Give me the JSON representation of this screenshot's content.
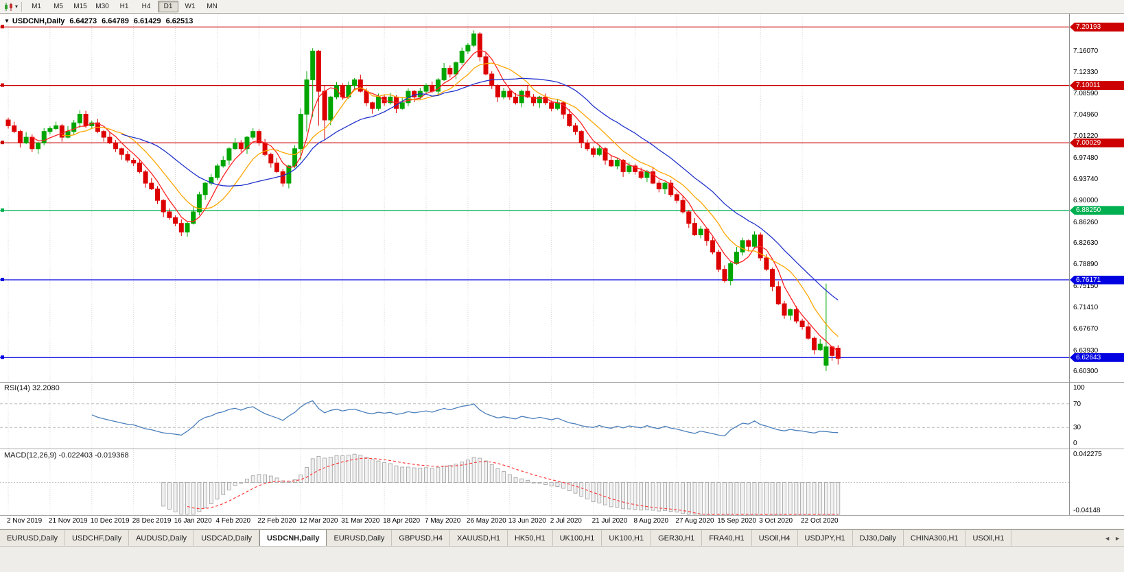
{
  "toolbar": {
    "timeframes": [
      "M1",
      "M5",
      "M15",
      "M30",
      "H1",
      "H4",
      "D1",
      "W1",
      "MN"
    ],
    "active_timeframe": "D1"
  },
  "chart_header": {
    "collapse_glyph": "▼",
    "symbol": "USDCNH,Daily",
    "open": "6.64273",
    "high": "6.64789",
    "low": "6.61429",
    "close": "6.62513"
  },
  "rsi_panel": {
    "name": "RSI(14)",
    "value": "32.2080",
    "axis_labels": [
      "100",
      "70",
      "30",
      "0"
    ]
  },
  "macd_panel": {
    "name": "MACD(12,26,9)",
    "value": "-0.022403 -0.019368",
    "axis_top": "0.042275",
    "axis_bottom": "-0.04148"
  },
  "tabs": {
    "items": [
      "EURUSD,Daily",
      "USDCHF,Daily",
      "AUDUSD,Daily",
      "USDCAD,Daily",
      "USDCNH,Daily",
      "EURUSD,Daily",
      "GBPUSD,H4",
      "XAUUSD,H1",
      "HK50,H1",
      "UK100,H1",
      "UK100,H1",
      "GER30,H1",
      "FRA40,H1",
      "USOil,H4",
      "USDJPY,H1",
      "DJ30,Daily",
      "CHINA300,H1",
      "USOil,H1"
    ],
    "active_index": 4,
    "scroll_left_glyph": "◄",
    "scroll_right_glyph": "►"
  },
  "chart_data": {
    "type": "candlestick",
    "title": "USDCNH,Daily",
    "y_range": [
      6.585,
      7.225
    ],
    "y_tick_labels": [
      "7.16070",
      "7.12330",
      "7.08590",
      "7.04960",
      "7.01220",
      "6.97480",
      "6.93740",
      "6.90000",
      "6.86260",
      "6.82630",
      "6.78890",
      "6.75150",
      "6.71410",
      "6.67670",
      "6.63930",
      "6.60300"
    ],
    "x_tick_labels": [
      "2 Nov 2019",
      "21 Nov 2019",
      "10 Dec 2019",
      "28 Dec 2019",
      "16 Jan 2020",
      "4 Feb 2020",
      "22 Feb 2020",
      "12 Mar 2020",
      "31 Mar 2020",
      "18 Apr 2020",
      "7 May 2020",
      "26 May 2020",
      "13 Jun 2020",
      "2 Jul 2020",
      "21 Jul 2020",
      "8 Aug 2020",
      "27 Aug 2020",
      "15 Sep 2020",
      "3 Oct 2020",
      "22 Oct 2020"
    ],
    "bars_per_x_tick": 7,
    "up_color": "#00A500",
    "down_color": "#DD0000",
    "candles": [
      [
        7.04,
        7.044,
        7.025,
        7.03
      ],
      [
        7.03,
        7.037,
        7.017,
        7.02
      ],
      [
        7.02,
        7.023,
        6.992,
        7.0
      ],
      [
        7.0,
        7.019,
        6.998,
        7.01
      ],
      [
        7.01,
        7.015,
        6.984,
        6.99
      ],
      [
        6.99,
        7.002,
        6.981,
        7.0
      ],
      [
        7.0,
        7.026,
        6.996,
        7.02
      ],
      [
        7.02,
        7.029,
        7.015,
        7.025
      ],
      [
        7.025,
        7.037,
        7.022,
        7.03
      ],
      [
        7.03,
        7.033,
        7.002,
        7.01
      ],
      [
        7.01,
        7.029,
        7.008,
        7.02
      ],
      [
        7.02,
        7.04,
        7.014,
        7.035
      ],
      [
        7.035,
        7.057,
        7.026,
        7.05
      ],
      [
        7.05,
        7.056,
        7.026,
        7.03
      ],
      [
        7.03,
        7.039,
        7.025,
        7.035
      ],
      [
        7.035,
        7.042,
        7.017,
        7.02
      ],
      [
        7.02,
        7.023,
        7.002,
        7.01
      ],
      [
        7.01,
        7.019,
        6.998,
        7.0
      ],
      [
        7.0,
        7.005,
        6.984,
        6.99
      ],
      [
        6.99,
        6.992,
        6.971,
        6.98
      ],
      [
        6.98,
        6.986,
        6.966,
        6.97
      ],
      [
        6.97,
        6.974,
        6.96,
        6.965
      ],
      [
        6.965,
        6.972,
        6.947,
        6.95
      ],
      [
        6.95,
        6.953,
        6.922,
        6.93
      ],
      [
        6.93,
        6.939,
        6.918,
        6.92
      ],
      [
        6.92,
        6.925,
        6.894,
        6.9
      ],
      [
        6.9,
        6.902,
        6.871,
        6.88
      ],
      [
        6.88,
        6.886,
        6.866,
        6.87
      ],
      [
        6.87,
        6.874,
        6.855,
        6.86
      ],
      [
        6.86,
        6.867,
        6.838,
        6.845
      ],
      [
        6.845,
        6.863,
        6.837,
        6.86
      ],
      [
        6.86,
        6.889,
        6.858,
        6.88
      ],
      [
        6.88,
        6.915,
        6.874,
        6.91
      ],
      [
        6.91,
        6.932,
        6.901,
        6.93
      ],
      [
        6.93,
        6.946,
        6.926,
        6.94
      ],
      [
        6.94,
        6.964,
        6.935,
        6.96
      ],
      [
        6.96,
        6.977,
        6.957,
        6.97
      ],
      [
        6.97,
        6.993,
        6.962,
        6.99
      ],
      [
        6.99,
        7.009,
        6.988,
        7.0
      ],
      [
        7.0,
        7.005,
        6.984,
        6.99
      ],
      [
        6.99,
        7.012,
        6.981,
        7.01
      ],
      [
        7.01,
        7.026,
        7.006,
        7.02
      ],
      [
        7.02,
        7.024,
        6.995,
        7.0
      ],
      [
        7.0,
        7.007,
        6.977,
        6.98
      ],
      [
        6.98,
        6.983,
        6.957,
        6.965
      ],
      [
        6.965,
        6.974,
        6.948,
        6.95
      ],
      [
        6.95,
        6.955,
        6.924,
        6.93
      ],
      [
        6.93,
        6.962,
        6.921,
        6.96
      ],
      [
        6.96,
        6.996,
        6.956,
        6.99
      ],
      [
        6.99,
        7.06,
        6.97,
        7.05
      ],
      [
        7.05,
        7.125,
        7.02,
        7.11
      ],
      [
        7.11,
        7.165,
        7.045,
        7.16
      ],
      [
        7.16,
        7.162,
        7.03,
        7.09
      ],
      [
        7.09,
        7.1,
        7.005,
        7.04
      ],
      [
        7.04,
        7.082,
        7.031,
        7.08
      ],
      [
        7.08,
        7.106,
        7.076,
        7.1
      ],
      [
        7.1,
        7.104,
        7.075,
        7.08
      ],
      [
        7.08,
        7.107,
        7.077,
        7.1
      ],
      [
        7.1,
        7.113,
        7.092,
        7.11
      ],
      [
        7.11,
        7.119,
        7.088,
        7.09
      ],
      [
        7.09,
        7.095,
        7.064,
        7.07
      ],
      [
        7.07,
        7.072,
        7.051,
        7.06
      ],
      [
        7.06,
        7.086,
        7.056,
        7.08
      ],
      [
        7.08,
        7.084,
        7.065,
        7.07
      ],
      [
        7.07,
        7.087,
        7.067,
        7.08
      ],
      [
        7.08,
        7.083,
        7.052,
        7.06
      ],
      [
        7.06,
        7.079,
        7.058,
        7.07
      ],
      [
        7.07,
        7.095,
        7.064,
        7.09
      ],
      [
        7.09,
        7.092,
        7.071,
        7.08
      ],
      [
        7.08,
        7.096,
        7.076,
        7.09
      ],
      [
        7.09,
        7.104,
        7.085,
        7.1
      ],
      [
        7.1,
        7.107,
        7.087,
        7.09
      ],
      [
        7.09,
        7.113,
        7.082,
        7.11
      ],
      [
        7.11,
        7.139,
        7.108,
        7.13
      ],
      [
        7.13,
        7.135,
        7.114,
        7.12
      ],
      [
        7.12,
        7.142,
        7.111,
        7.14
      ],
      [
        7.14,
        7.166,
        7.136,
        7.16
      ],
      [
        7.16,
        7.174,
        7.155,
        7.17
      ],
      [
        7.17,
        7.196,
        7.167,
        7.19
      ],
      [
        7.19,
        7.193,
        7.142,
        7.15
      ],
      [
        7.15,
        7.159,
        7.118,
        7.12
      ],
      [
        7.12,
        7.125,
        7.094,
        7.1
      ],
      [
        7.1,
        7.102,
        7.071,
        7.08
      ],
      [
        7.08,
        7.096,
        7.076,
        7.09
      ],
      [
        7.09,
        7.094,
        7.075,
        7.08
      ],
      [
        7.08,
        7.087,
        7.067,
        7.07
      ],
      [
        7.07,
        7.093,
        7.062,
        7.09
      ],
      [
        7.09,
        7.099,
        7.078,
        7.08
      ],
      [
        7.08,
        7.085,
        7.064,
        7.07
      ],
      [
        7.07,
        7.082,
        7.061,
        7.08
      ],
      [
        7.08,
        7.086,
        7.066,
        7.07
      ],
      [
        7.07,
        7.074,
        7.055,
        7.06
      ],
      [
        7.06,
        7.077,
        7.057,
        7.07
      ],
      [
        7.07,
        7.073,
        7.042,
        7.05
      ],
      [
        7.05,
        7.059,
        7.028,
        7.03
      ],
      [
        7.03,
        7.035,
        7.014,
        7.02
      ],
      [
        7.02,
        7.022,
        6.991,
        7.0
      ],
      [
        7.0,
        7.006,
        6.986,
        6.99
      ],
      [
        6.99,
        6.994,
        6.975,
        6.98
      ],
      [
        6.98,
        6.997,
        6.977,
        6.99
      ],
      [
        6.99,
        6.993,
        6.962,
        6.97
      ],
      [
        6.97,
        6.979,
        6.958,
        6.96
      ],
      [
        6.96,
        6.975,
        6.954,
        6.97
      ],
      [
        6.97,
        6.972,
        6.941,
        6.95
      ],
      [
        6.95,
        6.966,
        6.946,
        6.96
      ],
      [
        6.96,
        6.964,
        6.945,
        6.95
      ],
      [
        6.95,
        6.957,
        6.937,
        6.94
      ],
      [
        6.94,
        6.953,
        6.932,
        6.95
      ],
      [
        6.95,
        6.959,
        6.928,
        6.93
      ],
      [
        6.93,
        6.935,
        6.914,
        6.92
      ],
      [
        6.92,
        6.932,
        6.911,
        6.93
      ],
      [
        6.93,
        6.936,
        6.906,
        6.91
      ],
      [
        6.91,
        6.914,
        6.895,
        6.9
      ],
      [
        6.9,
        6.907,
        6.877,
        6.88
      ],
      [
        6.88,
        6.883,
        6.852,
        6.86
      ],
      [
        6.86,
        6.869,
        6.838,
        6.84
      ],
      [
        6.84,
        6.855,
        6.834,
        6.85
      ],
      [
        6.85,
        6.852,
        6.821,
        6.83
      ],
      [
        6.83,
        6.836,
        6.806,
        6.81
      ],
      [
        6.81,
        6.814,
        6.775,
        6.78
      ],
      [
        6.78,
        6.787,
        6.757,
        6.76
      ],
      [
        6.76,
        6.793,
        6.752,
        6.79
      ],
      [
        6.79,
        6.819,
        6.788,
        6.81
      ],
      [
        6.81,
        6.835,
        6.804,
        6.83
      ],
      [
        6.83,
        6.832,
        6.811,
        6.82
      ],
      [
        6.82,
        6.846,
        6.816,
        6.84
      ],
      [
        6.84,
        6.844,
        6.795,
        6.8
      ],
      [
        6.8,
        6.807,
        6.777,
        6.78
      ],
      [
        6.78,
        6.783,
        6.742,
        6.75
      ],
      [
        6.75,
        6.759,
        6.718,
        6.72
      ],
      [
        6.72,
        6.725,
        6.694,
        6.7
      ],
      [
        6.7,
        6.712,
        6.691,
        6.71
      ],
      [
        6.71,
        6.716,
        6.686,
        6.69
      ],
      [
        6.69,
        6.694,
        6.675,
        6.68
      ],
      [
        6.68,
        6.687,
        6.657,
        6.66
      ],
      [
        6.66,
        6.663,
        6.632,
        6.64
      ],
      [
        6.64,
        6.659,
        6.638,
        6.65
      ],
      [
        6.613,
        6.755,
        6.603,
        6.645
      ],
      [
        6.645,
        6.647,
        6.621,
        6.63
      ],
      [
        6.6427,
        6.6479,
        6.6143,
        6.6251
      ]
    ],
    "moving_averages": [
      {
        "name": "fast",
        "period": 5,
        "type": "sma",
        "color": "#FF2222"
      },
      {
        "name": "medium",
        "period": 10,
        "type": "sma",
        "color": "#FFA500"
      },
      {
        "name": "slow",
        "period": 20,
        "type": "sma",
        "color": "#2233CC"
      }
    ],
    "horizontal_levels": [
      {
        "label": "7.20193",
        "price": 7.20193,
        "color": "#CC0000"
      },
      {
        "label": "7.10011",
        "price": 7.10011,
        "color": "#CC0000"
      },
      {
        "label": "7.00029",
        "price": 7.00029,
        "color": "#CC0000"
      },
      {
        "label": "6.88250",
        "price": 6.8825,
        "color": "#00B050"
      },
      {
        "label": "6.76171",
        "price": 6.76171,
        "color": "#0000E0"
      },
      {
        "label": "6.62643",
        "price": 6.62643,
        "color": "#0000E0"
      }
    ],
    "rsi": {
      "period": 14,
      "current": 32.208,
      "levels": [
        70,
        30
      ],
      "color": "#4A7EBB"
    },
    "macd": {
      "fast": 12,
      "slow": 26,
      "signal": 9,
      "current": [
        -0.022403,
        -0.019368
      ],
      "axis_max": 0.042275,
      "axis_min": -0.04148,
      "histogram_color": "#9E9E9E",
      "histogram_fill": "#F1F1F1",
      "signal_color": "#FF3B3B"
    }
  }
}
